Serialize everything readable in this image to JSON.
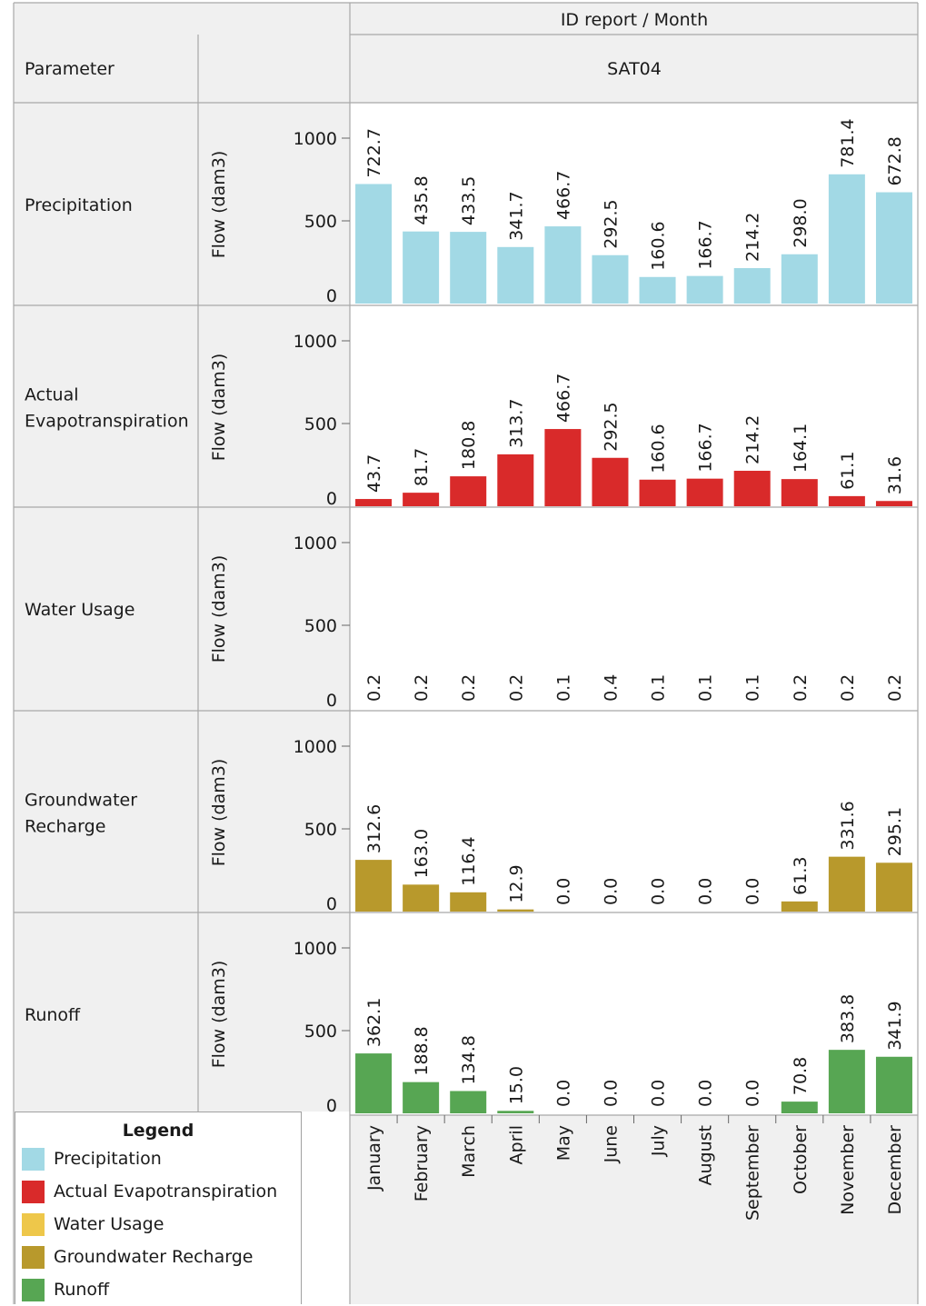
{
  "header": {
    "column_title": "ID report / Month",
    "column_value": "SAT04",
    "row_title": "Parameter"
  },
  "legend": {
    "title": "Legend",
    "items": [
      {
        "label": "Precipitation",
        "color": "#a2d9e5"
      },
      {
        "label": "Actual Evapotranspiration",
        "color": "#d92a2a"
      },
      {
        "label": "Water Usage",
        "color": "#eec74a"
      },
      {
        "label": "Groundwater Recharge",
        "color": "#b8992c"
      },
      {
        "label": "Runoff",
        "color": "#57a653"
      }
    ]
  },
  "chart_data": {
    "type": "bar",
    "categories": [
      "January",
      "February",
      "March",
      "April",
      "May",
      "June",
      "July",
      "August",
      "September",
      "October",
      "November",
      "December"
    ],
    "ylabel": "Flow (dam3)",
    "ylim": [
      0,
      1000
    ],
    "yticks": [
      0,
      500,
      1000
    ],
    "series": [
      {
        "name": "Precipitation",
        "row_label": [
          "Precipitation"
        ],
        "color": "#a2d9e5",
        "values": [
          722.7,
          435.8,
          433.5,
          341.7,
          466.7,
          292.5,
          160.6,
          166.7,
          214.2,
          298.0,
          781.4,
          672.8
        ],
        "labels": [
          "722.7",
          "435.8",
          "433.5",
          "341.7",
          "466.7",
          "292.5",
          "160.6",
          "166.7",
          "214.2",
          "298.0",
          "781.4",
          "672.8"
        ]
      },
      {
        "name": "Actual Evapotranspiration",
        "row_label": [
          "Actual",
          "Evapotranspiration"
        ],
        "color": "#d92a2a",
        "values": [
          43.7,
          81.7,
          180.8,
          313.7,
          466.7,
          292.5,
          160.6,
          166.7,
          214.2,
          164.1,
          61.1,
          31.6
        ],
        "labels": [
          "43.7",
          "81.7",
          "180.8",
          "313.7",
          "466.7",
          "292.5",
          "160.6",
          "166.7",
          "214.2",
          "164.1",
          "61.1",
          "31.6"
        ]
      },
      {
        "name": "Water Usage",
        "row_label": [
          "Water Usage"
        ],
        "color": "#eec74a",
        "values": [
          0.2,
          0.2,
          0.2,
          0.2,
          0.1,
          0.4,
          0.1,
          0.1,
          0.1,
          0.2,
          0.2,
          0.2
        ],
        "labels": [
          "0.2",
          "0.2",
          "0.2",
          "0.2",
          "0.1",
          "0.4",
          "0.1",
          "0.1",
          "0.1",
          "0.2",
          "0.2",
          "0.2"
        ]
      },
      {
        "name": "Groundwater Recharge",
        "row_label": [
          "Groundwater",
          "Recharge"
        ],
        "color": "#b8992c",
        "values": [
          312.6,
          163.0,
          116.4,
          12.9,
          0.0,
          0.0,
          0.0,
          0.0,
          0.0,
          61.3,
          331.6,
          295.1
        ],
        "labels": [
          "312.6",
          "163.0",
          "116.4",
          "12.9",
          "0.0",
          "0.0",
          "0.0",
          "0.0",
          "0.0",
          "61.3",
          "331.6",
          "295.1"
        ]
      },
      {
        "name": "Runoff",
        "row_label": [
          "Runoff"
        ],
        "color": "#57a653",
        "values": [
          362.1,
          188.8,
          134.8,
          15.0,
          0.0,
          0.0,
          0.0,
          0.0,
          0.0,
          70.8,
          383.8,
          341.9
        ],
        "labels": [
          "362.1",
          "188.8",
          "134.8",
          "15.0",
          "0.0",
          "0.0",
          "0.0",
          "0.0",
          "0.0",
          "70.8",
          "383.8",
          "341.9"
        ]
      }
    ]
  }
}
